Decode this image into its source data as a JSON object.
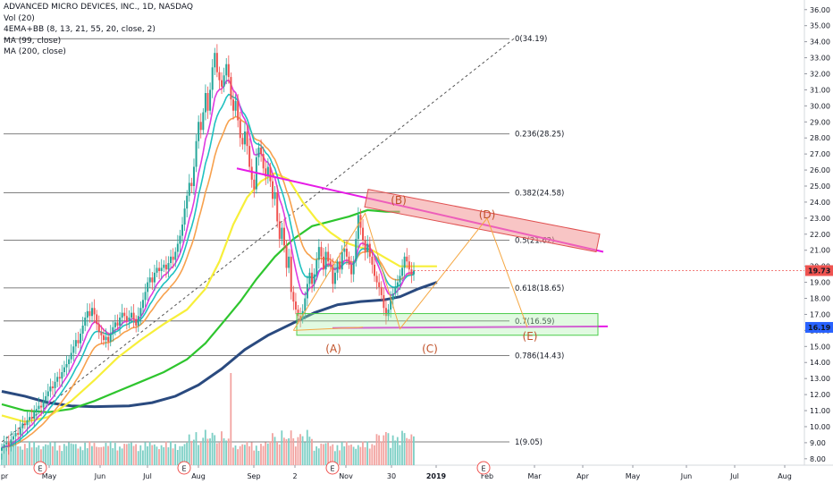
{
  "legend": {
    "title": "ADVANCED MICRO DEVICES, INC., 1D, NASDAQ",
    "vol": "Vol (20)",
    "ema": "4EMA+BB (8, 13, 21, 55, 20, close, 2)",
    "ma99": "MA (99, close)",
    "ma200": "MA (200, close)"
  },
  "chart_data": {
    "type": "line",
    "title": "ADVANCED MICRO DEVICES, INC., 1D, NASDAQ",
    "y_axis": {
      "ticks": [
        "36.00",
        "35.00",
        "34.00",
        "33.00",
        "32.00",
        "31.00",
        "30.00",
        "29.00",
        "28.00",
        "27.00",
        "26.00",
        "25.00",
        "24.00",
        "23.00",
        "22.00",
        "21.00",
        "20.00",
        "19.00",
        "18.00",
        "17.00",
        "16.00",
        "15.00",
        "14.00",
        "13.00",
        "12.00",
        "11.00",
        "10.00",
        "9.00",
        "8.00"
      ],
      "ylim": [
        7.6,
        36.6
      ]
    },
    "x_axis": {
      "ticks": [
        "pr",
        "May",
        "Jun",
        "Jul",
        "Aug",
        "Sep",
        "2",
        "Nov",
        "30",
        "2019",
        "Feb",
        "Mar",
        "Apr",
        "May",
        "Jun",
        "Jul",
        "Aug"
      ],
      "bold": [
        "2019"
      ]
    },
    "price_labels": [
      {
        "text": "19.73",
        "value": 19.73,
        "color": "#ef5350"
      },
      {
        "text": "16.19",
        "value": 16.19,
        "color": "#2962ff"
      }
    ],
    "fib_levels": [
      {
        "label": "0(34.19)",
        "value": 34.19
      },
      {
        "label": "0.236(28.25)",
        "value": 28.25
      },
      {
        "label": "0.382(24.58)",
        "value": 24.58
      },
      {
        "label": "0.5(21.62)",
        "value": 21.62
      },
      {
        "label": "0.618(18.65)",
        "value": 18.65
      },
      {
        "label": "0.7(16.59)",
        "value": 16.59
      },
      {
        "label": "0.786(14.43)",
        "value": 14.43
      },
      {
        "label": "1(9.05)",
        "value": 9.05
      }
    ],
    "wave_labels": [
      {
        "text": "(A)",
        "x_index": 130,
        "value": 15.5
      },
      {
        "text": "(B)",
        "x_index": 156,
        "value": 24.4
      },
      {
        "text": "(C)",
        "x_index": 170,
        "value": 15.5
      },
      {
        "text": "(D)",
        "x_index": 192,
        "value": 23.6
      },
      {
        "text": "(E)",
        "x_index": 209,
        "value": 16.1
      }
    ],
    "earnings_markers": [
      {
        "text": "E",
        "x_index": 15
      },
      {
        "text": "E",
        "x_index": 73
      },
      {
        "text": "E",
        "x_index": 131
      },
      {
        "text": "E",
        "x_index": 192
      }
    ],
    "closes": [
      8.7,
      8.9,
      9.0,
      8.8,
      9.2,
      9.4,
      9.6,
      9.5,
      9.9,
      10.2,
      10.1,
      10.4,
      10.6,
      10.5,
      10.9,
      11.1,
      11.3,
      11.2,
      11.6,
      11.9,
      12.2,
      12.5,
      12.4,
      12.8,
      13.1,
      13.0,
      13.4,
      13.7,
      13.9,
      14.2,
      14.6,
      15.0,
      15.4,
      15.2,
      15.8,
      16.3,
      16.8,
      17.2,
      16.9,
      17.4,
      17.0,
      16.4,
      15.9,
      15.7,
      15.4,
      15.6,
      15.3,
      15.8,
      16.2,
      16.5,
      16.3,
      16.8,
      17.1,
      16.9,
      16.6,
      16.8,
      17.1,
      16.7,
      16.3,
      16.9,
      17.4,
      17.9,
      18.4,
      19.0,
      19.3,
      19.0,
      19.6,
      19.9,
      19.7,
      19.9,
      20.1,
      19.8,
      20.2,
      20.6,
      20.4,
      20.9,
      21.4,
      21.9,
      22.6,
      23.6,
      24.4,
      25.2,
      25.0,
      26.2,
      27.8,
      29.0,
      28.5,
      29.6,
      30.8,
      29.7,
      31.0,
      32.4,
      33.3,
      32.1,
      31.6,
      31.2,
      31.9,
      32.6,
      31.8,
      30.4,
      29.7,
      30.3,
      29.1,
      28.0,
      27.6,
      28.4,
      27.5,
      26.2,
      25.4,
      24.8,
      26.8,
      27.4,
      27.0,
      26.1,
      25.6,
      26.2,
      25.3,
      24.2,
      24.6,
      22.8,
      21.7,
      22.4,
      21.3,
      19.9,
      20.6,
      18.4,
      17.8,
      17.3,
      16.9,
      16.7,
      17.2,
      18.0,
      18.9,
      19.6,
      18.9,
      19.5,
      20.4,
      21.2,
      20.6,
      19.8,
      20.9,
      20.3,
      20.1,
      18.9,
      19.6,
      20.3,
      19.8,
      20.9,
      21.1,
      20.6,
      20.1,
      19.5,
      20.3,
      21.7,
      23.2,
      22.4,
      21.6,
      20.9,
      21.4,
      20.6,
      20.1,
      19.4,
      19.0,
      18.7,
      18.2,
      17.4,
      16.9,
      17.3,
      17.9,
      18.3,
      18.7,
      19.0,
      19.4,
      19.9,
      20.6,
      20.3,
      19.8,
      19.5,
      19.73
    ],
    "series": [
      {
        "name": "MA (200, close)",
        "color": "#2a4a7f",
        "points": [
          [
            0,
            12.2
          ],
          [
            10,
            11.9
          ],
          [
            20,
            11.5
          ],
          [
            30,
            11.3
          ],
          [
            40,
            11.25
          ],
          [
            55,
            11.3
          ],
          [
            65,
            11.5
          ],
          [
            75,
            11.9
          ],
          [
            85,
            12.6
          ],
          [
            95,
            13.6
          ],
          [
            105,
            14.8
          ],
          [
            115,
            15.7
          ],
          [
            125,
            16.4
          ],
          [
            135,
            17.1
          ],
          [
            145,
            17.6
          ],
          [
            155,
            17.8
          ],
          [
            165,
            17.9
          ],
          [
            172,
            18.1
          ],
          [
            180,
            18.6
          ],
          [
            188,
            19.0
          ]
        ]
      },
      {
        "name": "MA (99, close)",
        "color": "#2ec52e",
        "points": [
          [
            0,
            11.4
          ],
          [
            10,
            11.0
          ],
          [
            20,
            10.9
          ],
          [
            30,
            11.1
          ],
          [
            40,
            11.6
          ],
          [
            50,
            12.2
          ],
          [
            60,
            12.8
          ],
          [
            70,
            13.4
          ],
          [
            80,
            14.2
          ],
          [
            88,
            15.2
          ],
          [
            95,
            16.4
          ],
          [
            103,
            17.8
          ],
          [
            110,
            19.2
          ],
          [
            118,
            20.6
          ],
          [
            126,
            21.7
          ],
          [
            134,
            22.5
          ],
          [
            142,
            22.8
          ],
          [
            150,
            23.1
          ],
          [
            158,
            23.5
          ],
          [
            166,
            23.4
          ],
          [
            172,
            23.4
          ]
        ]
      },
      {
        "name": "EMA 55",
        "color": "#f7ef3a",
        "points": [
          [
            0,
            10.7
          ],
          [
            10,
            10.3
          ],
          [
            20,
            10.6
          ],
          [
            30,
            11.6
          ],
          [
            40,
            12.9
          ],
          [
            50,
            14.3
          ],
          [
            60,
            15.4
          ],
          [
            70,
            16.4
          ],
          [
            80,
            17.3
          ],
          [
            88,
            18.6
          ],
          [
            94,
            20.3
          ],
          [
            100,
            22.6
          ],
          [
            106,
            24.3
          ],
          [
            112,
            25.3
          ],
          [
            118,
            25.8
          ],
          [
            124,
            25.4
          ],
          [
            130,
            24.0
          ],
          [
            136,
            22.9
          ],
          [
            142,
            22.1
          ],
          [
            148,
            21.5
          ],
          [
            154,
            21.2
          ],
          [
            160,
            21.0
          ],
          [
            166,
            20.5
          ],
          [
            172,
            20.0
          ],
          [
            180,
            20.0
          ],
          [
            188,
            20.0
          ]
        ]
      }
    ]
  }
}
